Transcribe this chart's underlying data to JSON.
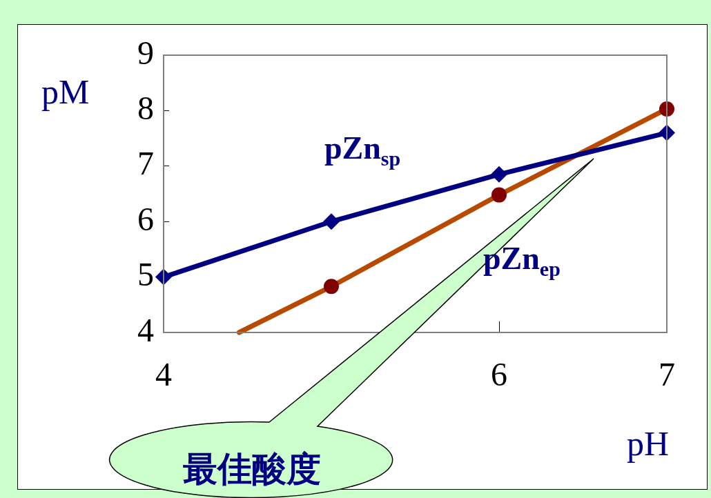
{
  "chart_data": {
    "type": "line",
    "xlabel": "pH",
    "ylabel": "pM",
    "xlim": [
      4,
      7
    ],
    "xticks": [
      4,
      6,
      7
    ],
    "ylim": [
      4,
      9
    ],
    "yticks": [
      4,
      5,
      6,
      7,
      8,
      9
    ],
    "grid": false,
    "legend": false,
    "line_style": "solid",
    "series": [
      {
        "name": "pZn$_{sp}$",
        "color": "#000080",
        "marker": "diamond",
        "x": [
          4,
          5,
          6,
          7
        ],
        "values": [
          5,
          6,
          6.85,
          7.6
        ]
      },
      {
        "name": "pZn$_{ep}$",
        "color": "#b84a00",
        "marker": "circle",
        "x": [
          4.45,
          5,
          6,
          7
        ],
        "values": [
          4,
          4.83,
          6.48,
          8.03
        ]
      }
    ],
    "annotations": [
      "最佳酸度"
    ]
  }
}
